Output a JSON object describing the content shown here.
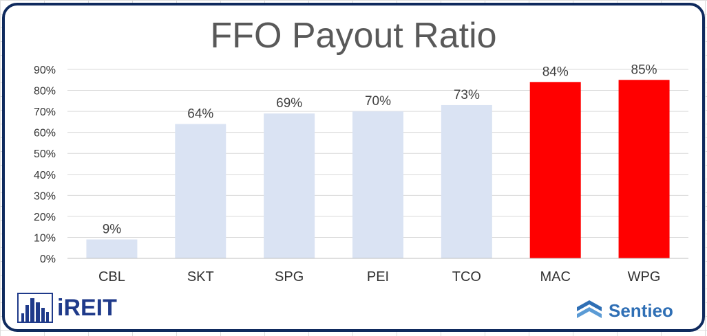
{
  "chart_data": {
    "type": "bar",
    "title": "FFO Payout Ratio",
    "categories": [
      "CBL",
      "SKT",
      "SPG",
      "PEI",
      "TCO",
      "MAC",
      "WPG"
    ],
    "values": [
      9,
      64,
      69,
      70,
      73,
      84,
      85
    ],
    "data_labels": [
      "9%",
      "64%",
      "69%",
      "70%",
      "73%",
      "84%",
      "85%"
    ],
    "bar_colors": [
      "#dae3f3",
      "#dae3f3",
      "#dae3f3",
      "#dae3f3",
      "#dae3f3",
      "#ff0000",
      "#ff0000"
    ],
    "ylim": [
      0,
      90
    ],
    "y_ticks": [
      "0%",
      "10%",
      "20%",
      "30%",
      "40%",
      "50%",
      "60%",
      "70%",
      "80%",
      "90%"
    ],
    "grid": true,
    "xlabel": "",
    "ylabel": ""
  },
  "logos": {
    "left": "iREIT",
    "right": "Sentieo"
  },
  "colors": {
    "frame": "#0f2a5e",
    "grid": "#d9d9d9",
    "highlight": "#ff0000",
    "normal": "#dae3f3"
  }
}
